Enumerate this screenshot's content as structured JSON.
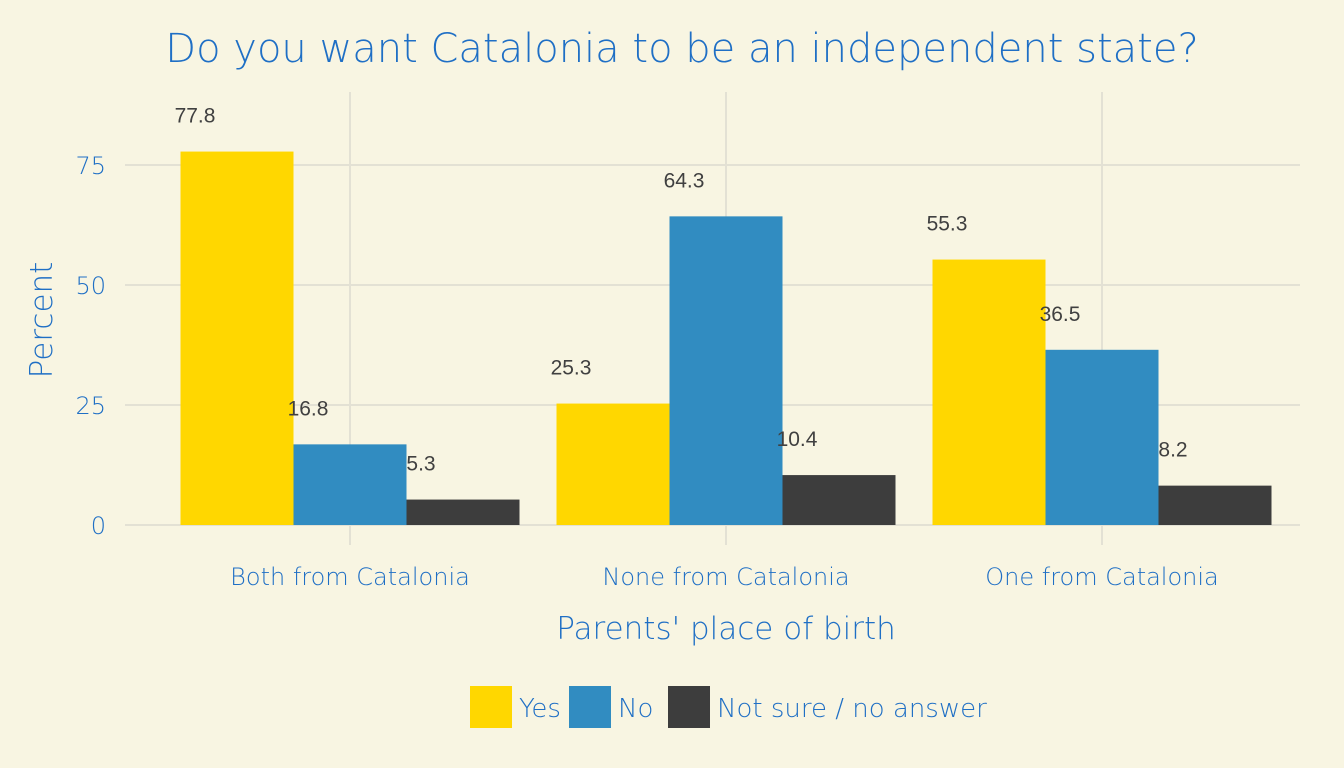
{
  "chart_data": {
    "type": "bar",
    "title": "Do you want Catalonia to be an independent state?",
    "xlabel": "Parents' place of birth",
    "ylabel": "Percent",
    "categories": [
      "Both from Catalonia",
      "None from Catalonia",
      "One from Catalonia"
    ],
    "series": [
      {
        "name": "Yes",
        "values": [
          77.8,
          25.3,
          55.3
        ],
        "color": "#FFD700"
      },
      {
        "name": "No",
        "values": [
          16.8,
          64.3,
          36.5
        ],
        "color": "#318CC1"
      },
      {
        "name": "Not sure / no answer",
        "values": [
          5.3,
          10.4,
          8.2
        ],
        "color": "#3D3D3D"
      }
    ],
    "y_ticks": [
      0,
      25,
      50,
      75
    ],
    "ylim": [
      0,
      90
    ],
    "grid": true,
    "legend_position": "bottom",
    "colors": {
      "background": "#f8f5e2",
      "text": "#1f6fc5",
      "value_label": "#404040",
      "grid": "#e3e1d4"
    }
  }
}
